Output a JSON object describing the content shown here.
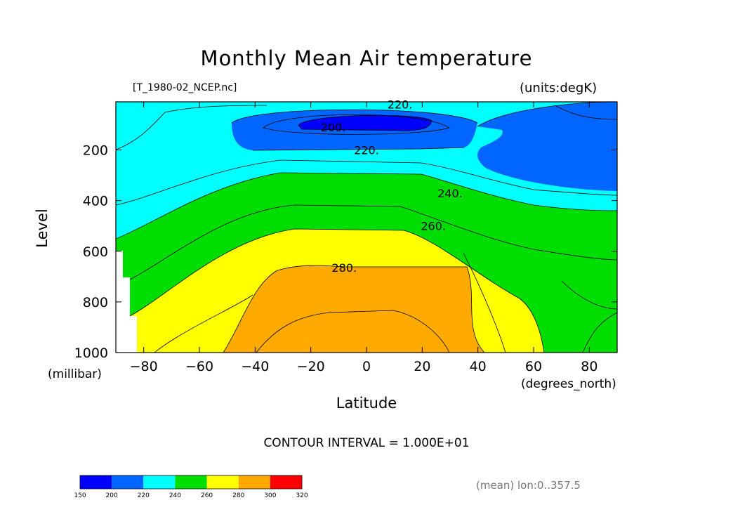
{
  "title": "Monthly Mean Air temperature",
  "dataset_label": "[T_1980-02_NCEP.nc]",
  "units_label": "(units:degK)",
  "contour_interval": "CONTOUR INTERVAL = 1.000E+01",
  "mean_note": "(mean) lon:0..357.5",
  "chart_data": {
    "type": "contour",
    "title": "Monthly Mean Air temperature",
    "xlabel": "Latitude",
    "xunit": "(degrees_north)",
    "ylabel": "Level",
    "yunit": "(millibar)",
    "xlim": [
      -90,
      90
    ],
    "ylim": [
      1000,
      10
    ],
    "x_ticks": [
      -80,
      -60,
      -40,
      -20,
      0,
      20,
      40,
      60,
      80
    ],
    "x_tick_labels": [
      "−80",
      "−60",
      "−40",
      "−20",
      "0",
      "20",
      "40",
      "60",
      "80"
    ],
    "y_ticks": [
      200,
      400,
      600,
      800,
      1000
    ],
    "y_tick_labels": [
      "200",
      "400",
      "600",
      "800",
      "1000"
    ],
    "contour_labels": [
      {
        "text": "220.",
        "x": 12,
        "y": 20
      },
      {
        "text": "200.",
        "x": -12,
        "y": 110
      },
      {
        "text": "220.",
        "x": 0,
        "y": 200
      },
      {
        "text": "240.",
        "x": 30,
        "y": 370
      },
      {
        "text": "260.",
        "x": 24,
        "y": 500
      },
      {
        "text": "280.",
        "x": -8,
        "y": 665
      }
    ],
    "bands": [
      {
        "range": [
          200,
          210
        ],
        "color": "#0000ff"
      },
      {
        "range": [
          210,
          220
        ],
        "color": "#0066ff"
      },
      {
        "range": [
          220,
          240
        ],
        "color": "#00ffff"
      },
      {
        "range": [
          240,
          260
        ],
        "color": "#00dd00"
      },
      {
        "range": [
          260,
          280
        ],
        "color": "#ffff00"
      },
      {
        "range": [
          280,
          300
        ],
        "color": "#ffaa00"
      }
    ],
    "colorbar": {
      "ticks": [
        "150",
        "200",
        "220",
        "240",
        "260",
        "280",
        "300",
        "320"
      ],
      "colors": [
        "#0000ff",
        "#0066ff",
        "#00ffff",
        "#00dd00",
        "#ffff00",
        "#ffaa00",
        "#ff0000"
      ]
    }
  }
}
